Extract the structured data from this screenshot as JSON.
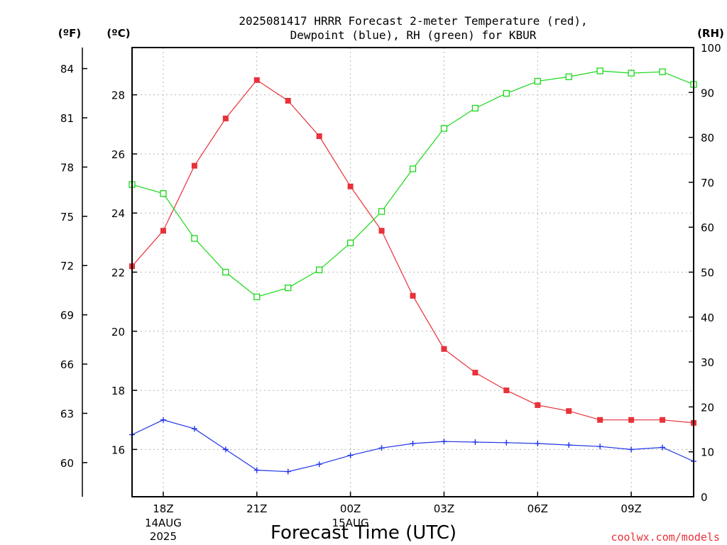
{
  "chart_data": {
    "type": "line",
    "title": [
      "2025081417 HRRR Forecast 2-meter Temperature (red),",
      "Dewpoint (blue), RH (green) for KBUR"
    ],
    "xlabel": "Forecast Time (UTC)",
    "credit": "coolwx.com/models",
    "axis_units": {
      "fahrenheit": "(ºF)",
      "celsius": "(ºC)",
      "rh": "(RH)"
    },
    "x_hours": [
      17,
      18,
      19,
      20,
      21,
      22,
      23,
      24,
      25,
      26,
      27,
      28,
      29,
      30,
      31,
      32,
      33,
      34,
      35
    ],
    "x_range": [
      17,
      35
    ],
    "x_ticks": [
      {
        "hour": 18,
        "label": "18Z",
        "sub": [
          "14AUG",
          "2025"
        ]
      },
      {
        "hour": 21,
        "label": "21Z",
        "sub": []
      },
      {
        "hour": 24,
        "label": "00Z",
        "sub": [
          "15AUG"
        ]
      },
      {
        "hour": 27,
        "label": "03Z",
        "sub": []
      },
      {
        "hour": 30,
        "label": "06Z",
        "sub": []
      },
      {
        "hour": 33,
        "label": "09Z",
        "sub": []
      }
    ],
    "celsius_range": [
      14.4,
      29.6
    ],
    "celsius_ticks": [
      16,
      18,
      20,
      22,
      24,
      26,
      28
    ],
    "fahrenheit_ticks": [
      60,
      63,
      66,
      69,
      72,
      75,
      78,
      81,
      84
    ],
    "rh_range": [
      0,
      100
    ],
    "rh_ticks": [
      0,
      10,
      20,
      30,
      40,
      50,
      60,
      70,
      80,
      90,
      100
    ],
    "grid": true,
    "colors": {
      "temperature": "#e8313a",
      "dewpoint": "#2036e6",
      "rh": "#18d818"
    },
    "series": [
      {
        "name": "Temperature",
        "axis": "celsius",
        "marker": "filled-square",
        "values": [
          22.2,
          23.4,
          25.6,
          27.2,
          28.5,
          27.8,
          26.6,
          24.9,
          23.4,
          21.2,
          19.4,
          18.6,
          18.0,
          17.5,
          17.3,
          17.0,
          17.0,
          17.0,
          16.9
        ]
      },
      {
        "name": "Dewpoint",
        "axis": "celsius",
        "marker": "plus",
        "values": [
          16.5,
          17.0,
          16.7,
          16.0,
          15.3,
          15.25,
          15.5,
          15.8,
          16.05,
          16.2,
          16.27,
          16.25,
          16.23,
          16.2,
          16.15,
          16.1,
          16.0,
          16.07,
          15.6
        ]
      },
      {
        "name": "RH",
        "axis": "rh",
        "marker": "open-square",
        "values": [
          69.5,
          67.5,
          57.5,
          50.0,
          44.5,
          46.5,
          50.5,
          56.5,
          63.5,
          73.0,
          82.0,
          86.5,
          89.8,
          92.5,
          93.5,
          94.8,
          94.3,
          94.6,
          91.8
        ]
      }
    ]
  }
}
